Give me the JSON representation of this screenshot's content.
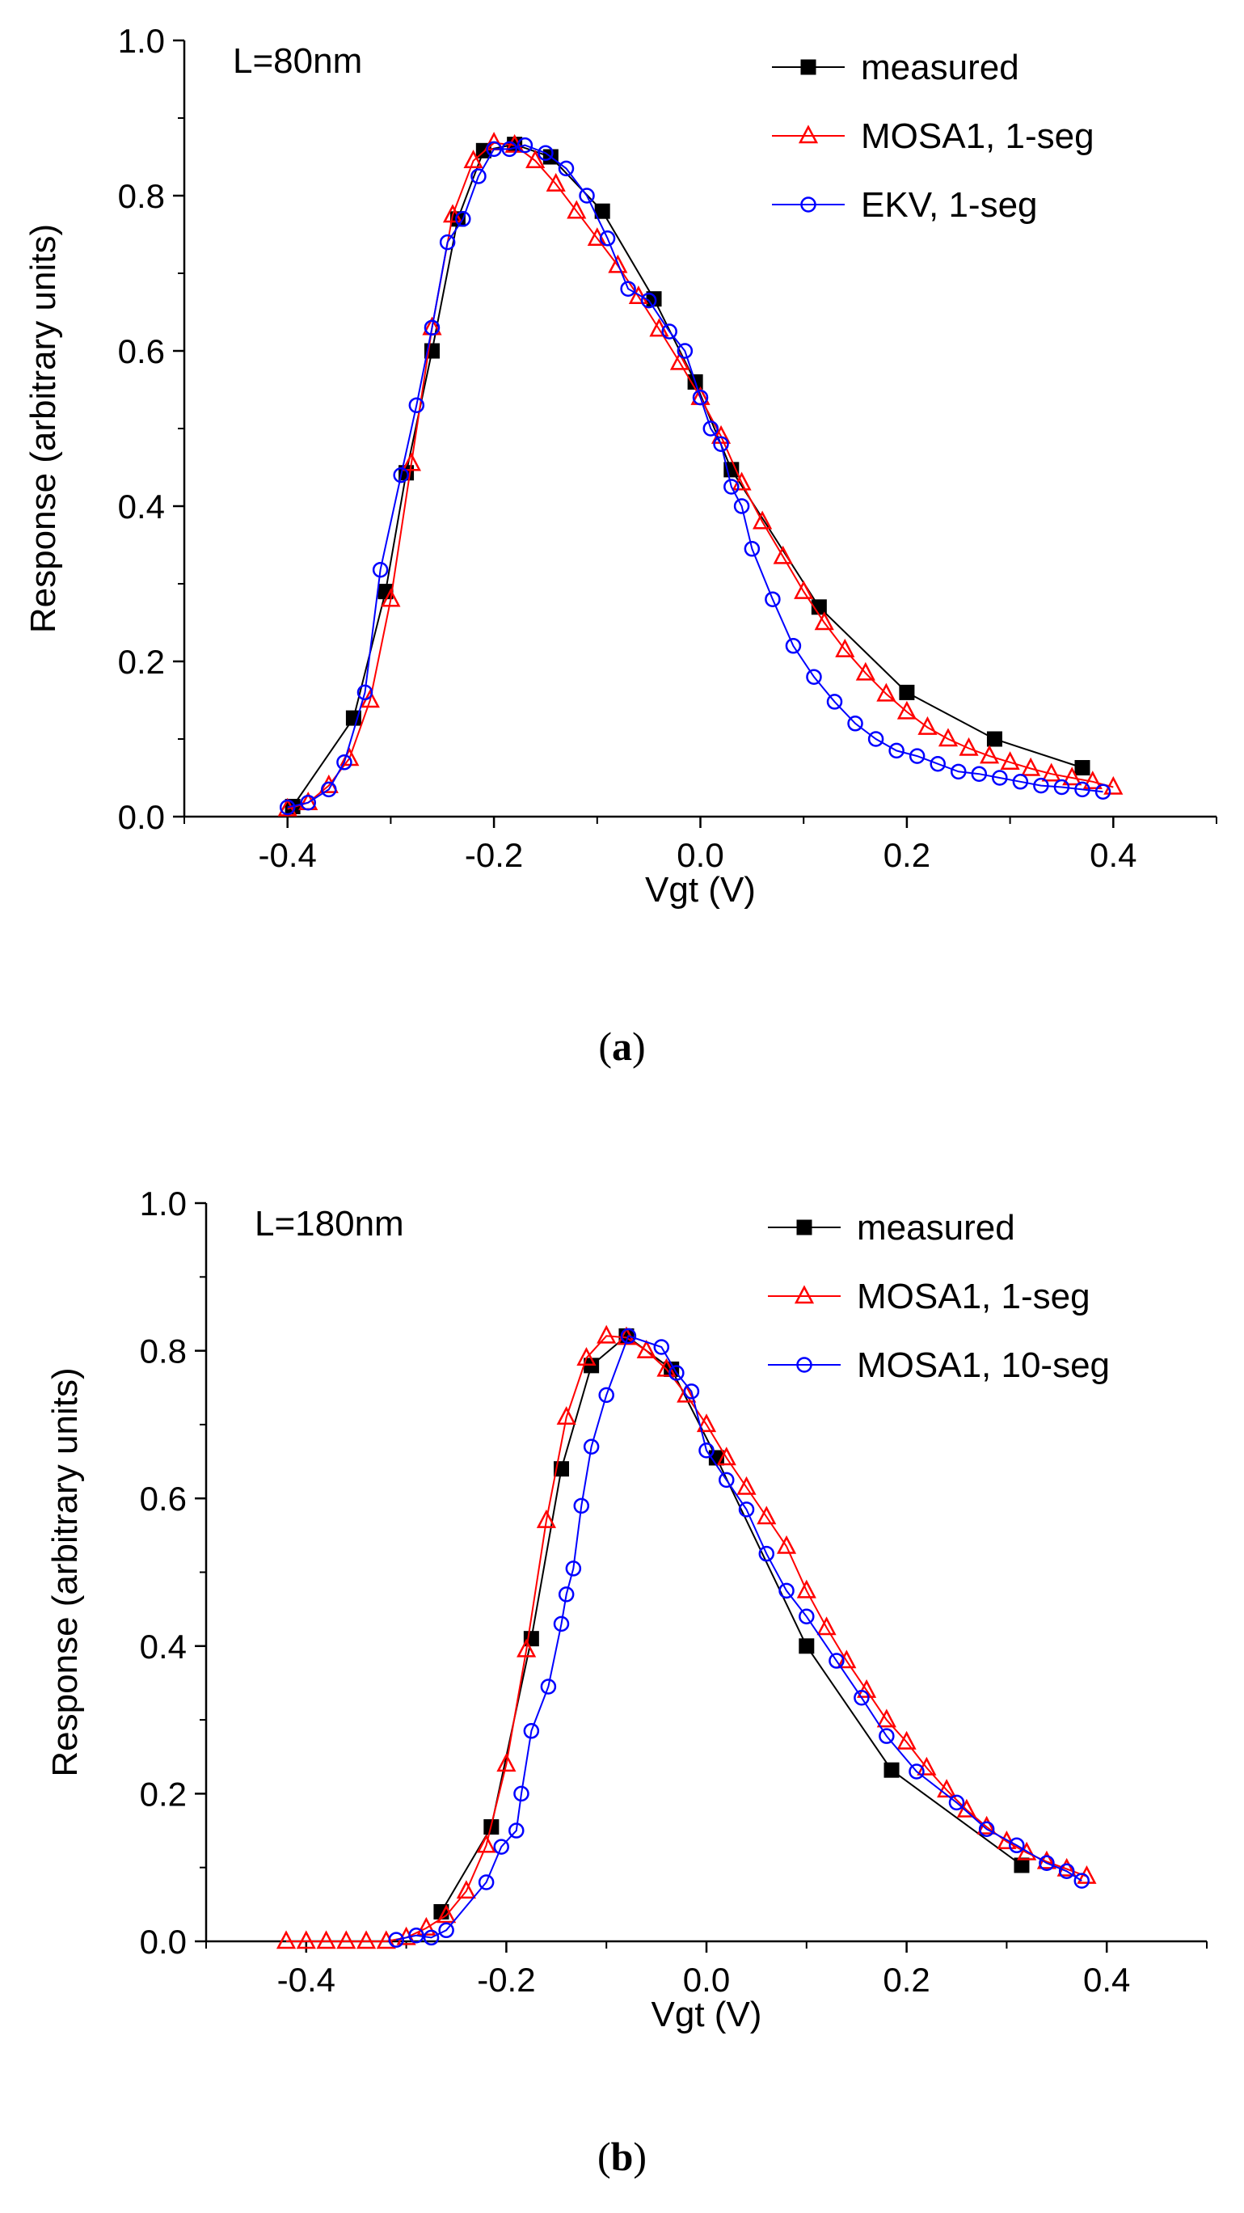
{
  "chart_data": [
    {
      "type": "line",
      "title": "",
      "annotation": "L=80nm",
      "caption_letter": "a",
      "xlabel": "Vgt (V)",
      "ylabel": "Response (arbitrary units)",
      "xlim": [
        -0.5,
        0.5
      ],
      "ylim": [
        0.0,
        1.0
      ],
      "xticks": [
        -0.4,
        -0.2,
        0.0,
        0.2,
        0.4
      ],
      "xtick_labels": [
        "-0.4",
        "-0.2",
        "0.0",
        "0.2",
        "0.4"
      ],
      "yticks": [
        0.0,
        0.2,
        0.4,
        0.6,
        0.8,
        1.0
      ],
      "ytick_labels": [
        "0.0",
        "0.2",
        "0.4",
        "0.6",
        "0.8",
        "1.0"
      ],
      "legend_position": "top-right",
      "grid": false,
      "series": [
        {
          "name": "measured",
          "color": "#000000",
          "marker": "square-filled",
          "x": [
            -0.395,
            -0.336,
            -0.305,
            -0.285,
            -0.26,
            -0.235,
            -0.21,
            -0.18,
            -0.145,
            -0.095,
            -0.045,
            -0.005,
            0.03,
            0.115,
            0.2,
            0.285,
            0.37
          ],
          "y": [
            0.013,
            0.127,
            0.29,
            0.443,
            0.6,
            0.77,
            0.858,
            0.866,
            0.85,
            0.78,
            0.667,
            0.56,
            0.447,
            0.27,
            0.16,
            0.1,
            0.063
          ]
        },
        {
          "name": "MOSA1, 1-seg",
          "color": "#ff0000",
          "marker": "triangle-open",
          "x": [
            -0.4,
            -0.38,
            -0.36,
            -0.34,
            -0.32,
            -0.3,
            -0.28,
            -0.26,
            -0.24,
            -0.22,
            -0.2,
            -0.18,
            -0.16,
            -0.14,
            -0.12,
            -0.1,
            -0.08,
            -0.06,
            -0.04,
            -0.02,
            0.0,
            0.02,
            0.04,
            0.06,
            0.08,
            0.1,
            0.12,
            0.14,
            0.16,
            0.18,
            0.2,
            0.22,
            0.24,
            0.26,
            0.28,
            0.3,
            0.32,
            0.34,
            0.36,
            0.38,
            0.4
          ],
          "y": [
            0.01,
            0.018,
            0.04,
            0.075,
            0.15,
            0.28,
            0.455,
            0.63,
            0.775,
            0.845,
            0.868,
            0.865,
            0.845,
            0.815,
            0.78,
            0.745,
            0.71,
            0.67,
            0.628,
            0.585,
            0.54,
            0.49,
            0.43,
            0.38,
            0.335,
            0.29,
            0.25,
            0.215,
            0.185,
            0.158,
            0.135,
            0.115,
            0.1,
            0.088,
            0.078,
            0.07,
            0.062,
            0.055,
            0.05,
            0.045,
            0.038
          ]
        },
        {
          "name": "EKV, 1-seg",
          "color": "#0000ff",
          "marker": "circle-open",
          "x": [
            -0.4,
            -0.38,
            -0.36,
            -0.345,
            -0.325,
            -0.31,
            -0.29,
            -0.275,
            -0.26,
            -0.245,
            -0.23,
            -0.215,
            -0.2,
            -0.185,
            -0.17,
            -0.15,
            -0.13,
            -0.11,
            -0.09,
            -0.07,
            -0.05,
            -0.03,
            -0.015,
            0.0,
            0.01,
            0.02,
            0.03,
            0.04,
            0.05,
            0.07,
            0.09,
            0.11,
            0.13,
            0.15,
            0.17,
            0.19,
            0.21,
            0.23,
            0.25,
            0.27,
            0.29,
            0.31,
            0.33,
            0.35,
            0.37,
            0.39
          ],
          "y": [
            0.012,
            0.018,
            0.035,
            0.07,
            0.16,
            0.318,
            0.44,
            0.53,
            0.63,
            0.74,
            0.77,
            0.825,
            0.86,
            0.86,
            0.865,
            0.855,
            0.835,
            0.8,
            0.745,
            0.68,
            0.665,
            0.625,
            0.6,
            0.54,
            0.5,
            0.48,
            0.425,
            0.4,
            0.345,
            0.28,
            0.22,
            0.18,
            0.148,
            0.12,
            0.1,
            0.085,
            0.078,
            0.068,
            0.058,
            0.055,
            0.05,
            0.045,
            0.04,
            0.038,
            0.035,
            0.032
          ]
        }
      ]
    },
    {
      "type": "line",
      "title": "",
      "annotation": "L=180nm",
      "caption_letter": "b",
      "xlabel": "Vgt (V)",
      "ylabel": "Response (arbitrary units)",
      "xlim": [
        -0.5,
        0.5
      ],
      "ylim": [
        0.0,
        1.0
      ],
      "xticks": [
        -0.4,
        -0.2,
        0.0,
        0.2,
        0.4
      ],
      "xtick_labels": [
        "-0.4",
        "-0.2",
        "0.0",
        "0.2",
        "0.4"
      ],
      "yticks": [
        0.0,
        0.2,
        0.4,
        0.6,
        0.8,
        1.0
      ],
      "ytick_labels": [
        "0.0",
        "0.2",
        "0.4",
        "0.6",
        "0.8",
        "1.0"
      ],
      "legend_position": "top-right",
      "grid": false,
      "series": [
        {
          "name": "measured",
          "color": "#000000",
          "marker": "square-filled",
          "x": [
            -0.265,
            -0.215,
            -0.175,
            -0.145,
            -0.115,
            -0.08,
            -0.035,
            0.01,
            0.1,
            0.185,
            0.315
          ],
          "y": [
            0.04,
            0.155,
            0.41,
            0.64,
            0.78,
            0.82,
            0.775,
            0.655,
            0.4,
            0.232,
            0.103
          ]
        },
        {
          "name": "MOSA1, 1-seg",
          "color": "#ff0000",
          "marker": "triangle-open",
          "x": [
            -0.42,
            -0.4,
            -0.38,
            -0.36,
            -0.34,
            -0.32,
            -0.3,
            -0.28,
            -0.26,
            -0.24,
            -0.22,
            -0.2,
            -0.18,
            -0.16,
            -0.14,
            -0.12,
            -0.1,
            -0.08,
            -0.06,
            -0.04,
            -0.02,
            0.0,
            0.02,
            0.04,
            0.06,
            0.08,
            0.1,
            0.12,
            0.14,
            0.16,
            0.18,
            0.2,
            0.22,
            0.24,
            0.26,
            0.28,
            0.3,
            0.32,
            0.34,
            0.36,
            0.38
          ],
          "y": [
            0.0,
            0.0,
            0.0,
            0.0,
            0.0,
            0.0,
            0.005,
            0.018,
            0.035,
            0.068,
            0.13,
            0.24,
            0.395,
            0.57,
            0.71,
            0.79,
            0.82,
            0.818,
            0.8,
            0.775,
            0.74,
            0.7,
            0.655,
            0.615,
            0.575,
            0.535,
            0.475,
            0.425,
            0.38,
            0.34,
            0.3,
            0.27,
            0.235,
            0.205,
            0.178,
            0.155,
            0.135,
            0.12,
            0.108,
            0.098,
            0.088
          ]
        },
        {
          "name": "MOSA1, 10-seg",
          "color": "#0000ff",
          "marker": "circle-open",
          "x": [
            -0.31,
            -0.29,
            -0.275,
            -0.26,
            -0.22,
            -0.205,
            -0.19,
            -0.185,
            -0.175,
            -0.158,
            -0.145,
            -0.14,
            -0.133,
            -0.125,
            -0.115,
            -0.1,
            -0.078,
            -0.045,
            -0.03,
            -0.015,
            0.0,
            0.02,
            0.04,
            0.06,
            0.08,
            0.1,
            0.13,
            0.155,
            0.18,
            0.21,
            0.25,
            0.28,
            0.31,
            0.34,
            0.36,
            0.375
          ],
          "y": [
            0.002,
            0.008,
            0.005,
            0.015,
            0.08,
            0.128,
            0.15,
            0.2,
            0.285,
            0.345,
            0.43,
            0.47,
            0.505,
            0.59,
            0.67,
            0.74,
            0.82,
            0.805,
            0.77,
            0.745,
            0.665,
            0.625,
            0.585,
            0.525,
            0.475,
            0.44,
            0.38,
            0.33,
            0.278,
            0.23,
            0.188,
            0.152,
            0.13,
            0.106,
            0.095,
            0.082
          ]
        }
      ]
    }
  ]
}
